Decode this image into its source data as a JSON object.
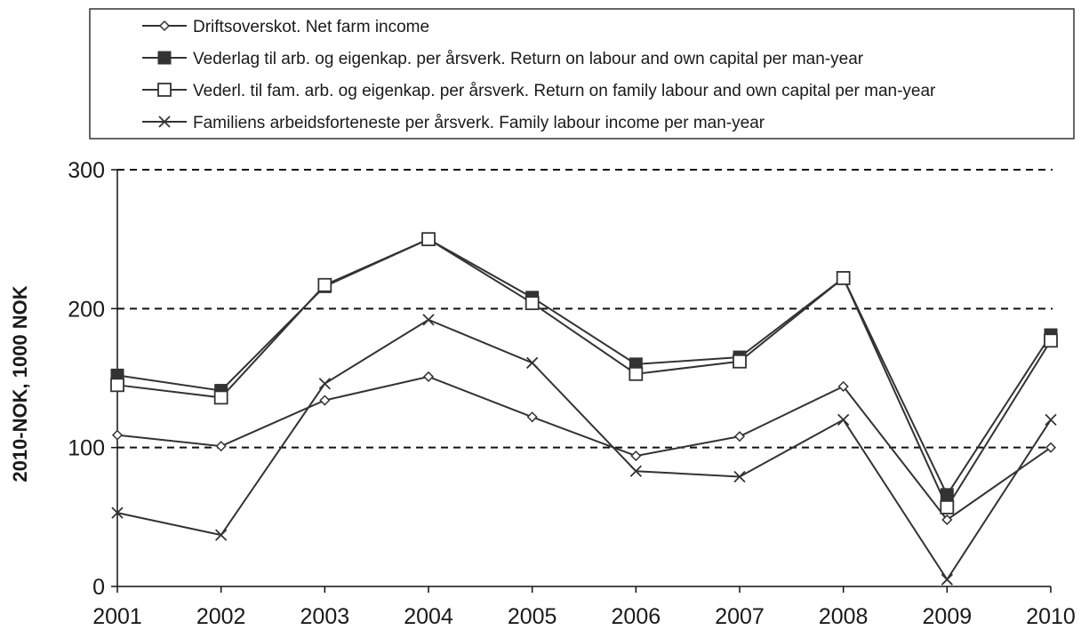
{
  "chart_data": {
    "type": "line",
    "title": "",
    "xlabel": "",
    "ylabel": "2010-NOK, 1000 NOK",
    "x": [
      "2001",
      "2002",
      "2003",
      "2004",
      "2005",
      "2006",
      "2007",
      "2008",
      "2009",
      "2010"
    ],
    "ylim": [
      0,
      300
    ],
    "yticks": [
      "0",
      "100",
      "200",
      "300"
    ],
    "grid": "horizontal dashed at 100, 200, 300",
    "legend_position": "top",
    "series": [
      {
        "name": "Driftsoverskot. Net farm income",
        "marker": "diamond-open",
        "values": [
          109,
          101,
          134,
          151,
          122,
          94,
          108,
          144,
          48,
          100
        ]
      },
      {
        "name": "Vederlag til arb. og eigenkap. per årsverk. Return on labour and own capital per man-year",
        "marker": "square-filled",
        "values": [
          152,
          141,
          216,
          250,
          208,
          160,
          165,
          222,
          66,
          181
        ]
      },
      {
        "name": "Vederl. til fam. arb. og eigenkap. per årsverk. Return on family labour and own capital per man-year",
        "marker": "square-open",
        "values": [
          145,
          136,
          217,
          250,
          204,
          153,
          162,
          222,
          57,
          177
        ]
      },
      {
        "name": "Familiens arbeidsforteneste per årsverk. Family labour income per man-year",
        "marker": "cross",
        "values": [
          53,
          37,
          146,
          192,
          161,
          83,
          79,
          120,
          5,
          120
        ]
      }
    ]
  }
}
